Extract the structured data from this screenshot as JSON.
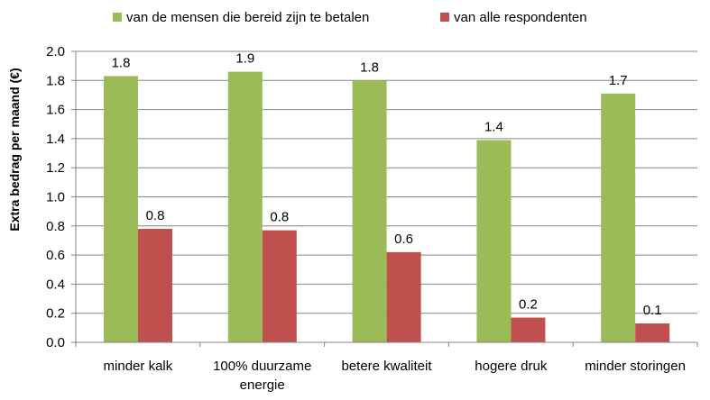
{
  "chart_data": {
    "type": "bar",
    "title": "",
    "xlabel": "",
    "ylabel": "Extra bedrag per maand (€)",
    "ylim": [
      0,
      2.0
    ],
    "ytick_step": 0.2,
    "yticks": [
      "0.0",
      "0.2",
      "0.4",
      "0.6",
      "0.8",
      "1.0",
      "1.2",
      "1.4",
      "1.6",
      "1.8",
      "2.0"
    ],
    "grid": true,
    "legend_position": "top",
    "categories": [
      [
        "minder kalk"
      ],
      [
        "100% duurzame",
        "energie"
      ],
      [
        "betere kwaliteit"
      ],
      [
        "hogere druk"
      ],
      [
        "minder storingen"
      ]
    ],
    "series": [
      {
        "name": "van de mensen die bereid zijn te betalen",
        "color": "#9bbb59",
        "values": [
          1.83,
          1.86,
          1.8,
          1.39,
          1.71
        ],
        "labels": [
          "1.8",
          "1.9",
          "1.8",
          "1.4",
          "1.7"
        ]
      },
      {
        "name": "van alle respondenten",
        "color": "#c0504d",
        "values": [
          0.78,
          0.77,
          0.62,
          0.17,
          0.13
        ],
        "labels": [
          "0.8",
          "0.8",
          "0.6",
          "0.2",
          "0.1"
        ]
      }
    ]
  }
}
